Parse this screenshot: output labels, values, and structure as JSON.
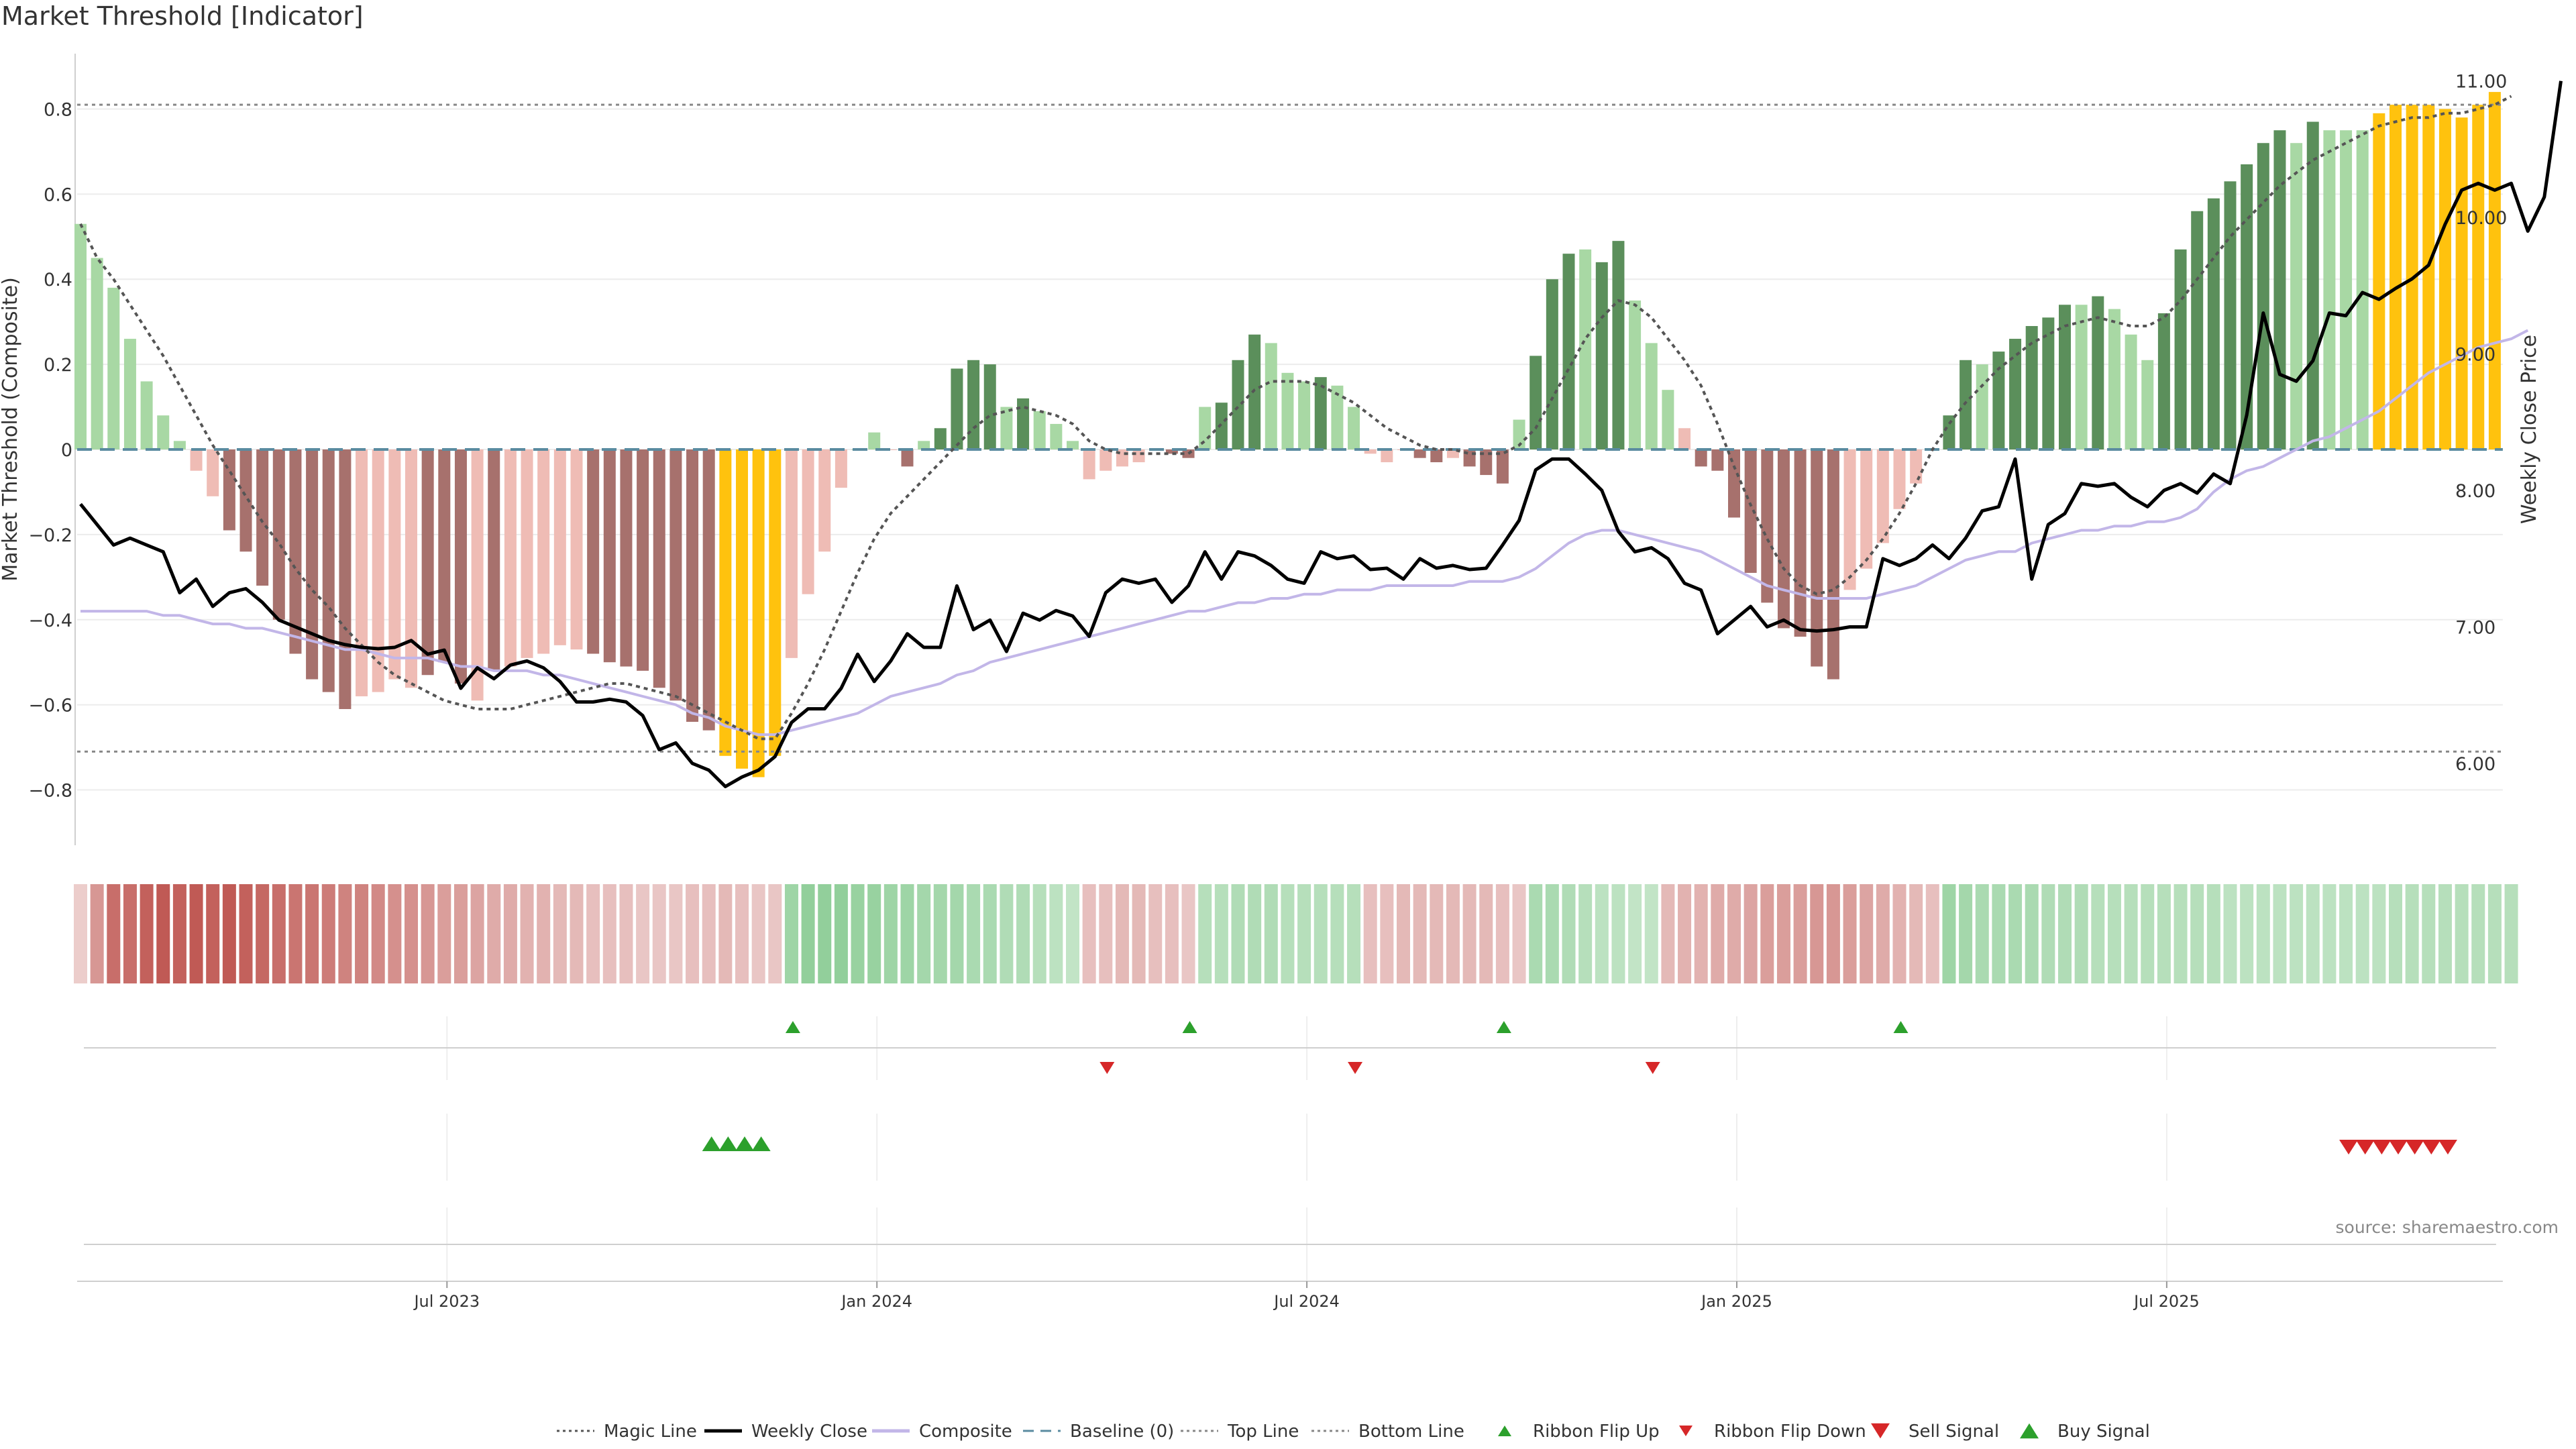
{
  "title": "Market Threshold [Indicator]",
  "source": "source: sharemaestro.com",
  "colors": {
    "magic": "#555555",
    "weekly": "#000000",
    "composite": "#c2b6e8",
    "baseline": "#5a8ba0",
    "threshold": "#888888",
    "dark_green": "#5b8f5b",
    "light_green": "#a8d8a4",
    "dark_red": "#a7716d",
    "light_red": "#efbcb5",
    "gold": "#ffc20e",
    "flip_up": "#2ca02c",
    "flip_down": "#d62728",
    "sell": "#d62728",
    "buy": "#2ca02c",
    "ribbon_red": "#c05a55",
    "ribbon_green": "#6fc07a"
  },
  "chart_data": {
    "type": "bar",
    "x_axis": {
      "ticks": [
        "Jul 2023",
        "Jan 2024",
        "Jul 2024",
        "Jan 2025",
        "Jul 2025"
      ],
      "tick_positions_week_index": [
        22,
        48,
        74,
        100,
        126
      ]
    },
    "y_left": {
      "label": "Market Threshold (Composite)",
      "range": [
        -0.93,
        0.93
      ],
      "ticks": [
        "0.8",
        "0.6",
        "0.4",
        "0.2",
        "0",
        "−0.2",
        "−0.4",
        "−0.6",
        "−0.8"
      ],
      "tick_values": [
        0.8,
        0.6,
        0.4,
        0.2,
        0,
        -0.2,
        -0.4,
        -0.6,
        -0.8
      ]
    },
    "y_right": {
      "label": "Weekly Close Price",
      "range": [
        5.4,
        11.2
      ],
      "ticks": [
        "11.00",
        "10.00",
        "9.00",
        "8.00",
        "7.00",
        "6.00"
      ],
      "tick_values": [
        11,
        10,
        9,
        8,
        7,
        6
      ]
    },
    "top_line": 0.81,
    "bottom_line": -0.71,
    "bars": [
      0.53,
      0.45,
      0.38,
      0.26,
      0.16,
      0.08,
      0.02,
      -0.05,
      -0.11,
      -0.19,
      -0.24,
      -0.32,
      -0.4,
      -0.48,
      -0.54,
      -0.57,
      -0.61,
      -0.58,
      -0.57,
      -0.54,
      -0.56,
      -0.53,
      -0.5,
      -0.55,
      -0.59,
      -0.52,
      -0.51,
      -0.49,
      -0.48,
      -0.46,
      -0.47,
      -0.48,
      -0.5,
      -0.51,
      -0.52,
      -0.56,
      -0.59,
      -0.64,
      -0.66,
      -0.72,
      -0.75,
      -0.77,
      -0.72,
      -0.49,
      -0.34,
      -0.24,
      -0.09,
      0,
      0.04,
      0,
      -0.04,
      0.02,
      0.05,
      0.19,
      0.21,
      0.2,
      0.1,
      0.12,
      0.09,
      0.06,
      0.02,
      -0.07,
      -0.05,
      -0.04,
      -0.03,
      0,
      -0.01,
      -0.02,
      0.1,
      0.11,
      0.21,
      0.27,
      0.25,
      0.18,
      0.16,
      0.17,
      0.15,
      0.1,
      -0.01,
      -0.03,
      0,
      -0.02,
      -0.03,
      -0.02,
      -0.04,
      -0.06,
      -0.08,
      0.07,
      0.22,
      0.4,
      0.46,
      0.47,
      0.44,
      0.49,
      0.35,
      0.25,
      0.14,
      0.05,
      -0.04,
      -0.05,
      -0.16,
      -0.29,
      -0.36,
      -0.42,
      -0.44,
      -0.51,
      -0.54,
      -0.33,
      -0.28,
      -0.22,
      -0.14,
      -0.08,
      0,
      0.08,
      0.21,
      0.2,
      0.23,
      0.26,
      0.29,
      0.31,
      0.34,
      0.34,
      0.36,
      0.33,
      0.27,
      0.21,
      0.32,
      0.47,
      0.56,
      0.59,
      0.63,
      0.67,
      0.72,
      0.75,
      0.72,
      0.77,
      0.75,
      0.75,
      0.75,
      0.79,
      0.81,
      0.81,
      0.81,
      0.8,
      0.78,
      0.81,
      0.84
    ],
    "bar_styles": [
      "lg",
      "lg",
      "lg",
      "lg",
      "lg",
      "lg",
      "lg",
      "lr",
      "lr",
      "dr",
      "dr",
      "dr",
      "dr",
      "dr",
      "dr",
      "dr",
      "dr",
      "lr",
      "lr",
      "lr",
      "lr",
      "dr",
      "dr",
      "dr",
      "lr",
      "dr",
      "lr",
      "lr",
      "lr",
      "lr",
      "lr",
      "dr",
      "dr",
      "dr",
      "dr",
      "dr",
      "dr",
      "dr",
      "dr",
      "g",
      "g",
      "g",
      "g",
      "lr",
      "lr",
      "lr",
      "lr",
      "lg",
      "lg",
      "lr",
      "dr",
      "lg",
      "dg",
      "dg",
      "dg",
      "dg",
      "lg",
      "dg",
      "lg",
      "lg",
      "lg",
      "lr",
      "lr",
      "lr",
      "lr",
      "lr",
      "dr",
      "dr",
      "lg",
      "dg",
      "dg",
      "dg",
      "lg",
      "lg",
      "lg",
      "dg",
      "lg",
      "lg",
      "lr",
      "lr",
      "lr",
      "dr",
      "dr",
      "lr",
      "dr",
      "dr",
      "dr",
      "lg",
      "dg",
      "dg",
      "dg",
      "lg",
      "dg",
      "dg",
      "lg",
      "lg",
      "lg",
      "lr",
      "dr",
      "dr",
      "dr",
      "dr",
      "dr",
      "dr",
      "dr",
      "dr",
      "dr",
      "lr",
      "lr",
      "lr",
      "lr",
      "lr",
      "lg",
      "dg",
      "dg",
      "lg",
      "dg",
      "dg",
      "dg",
      "dg",
      "dg",
      "lg",
      "dg",
      "lg",
      "lg",
      "lg",
      "dg",
      "dg",
      "dg",
      "dg",
      "dg",
      "dg",
      "dg",
      "dg",
      "lg",
      "dg",
      "lg",
      "lg",
      "lg",
      "g",
      "g",
      "g",
      "g",
      "g",
      "g",
      "g",
      "g"
    ],
    "series": [
      {
        "name": "Magic Line",
        "values": [
          0.53,
          0.45,
          0.4,
          0.34,
          0.28,
          0.22,
          0.15,
          0.08,
          0.01,
          -0.05,
          -0.11,
          -0.17,
          -0.22,
          -0.28,
          -0.33,
          -0.37,
          -0.42,
          -0.46,
          -0.5,
          -0.53,
          -0.55,
          -0.57,
          -0.59,
          -0.6,
          -0.61,
          -0.61,
          -0.61,
          -0.6,
          -0.59,
          -0.58,
          -0.57,
          -0.56,
          -0.55,
          -0.55,
          -0.56,
          -0.57,
          -0.58,
          -0.6,
          -0.62,
          -0.64,
          -0.66,
          -0.68,
          -0.68,
          -0.62,
          -0.55,
          -0.47,
          -0.38,
          -0.29,
          -0.21,
          -0.15,
          -0.11,
          -0.07,
          -0.03,
          0.01,
          0.05,
          0.08,
          0.09,
          0.1,
          0.09,
          0.08,
          0.06,
          0.02,
          0,
          -0.01,
          -0.01,
          -0.01,
          -0.01,
          -0.01,
          0.02,
          0.06,
          0.1,
          0.14,
          0.16,
          0.16,
          0.16,
          0.15,
          0.13,
          0.11,
          0.08,
          0.05,
          0.03,
          0.01,
          0,
          0,
          -0.01,
          -0.01,
          -0.01,
          0.01,
          0.05,
          0.12,
          0.19,
          0.26,
          0.31,
          0.35,
          0.34,
          0.31,
          0.26,
          0.21,
          0.15,
          0.06,
          -0.04,
          -0.13,
          -0.21,
          -0.28,
          -0.32,
          -0.34,
          -0.33,
          -0.3,
          -0.26,
          -0.21,
          -0.15,
          -0.08,
          0,
          0.06,
          0.11,
          0.15,
          0.19,
          0.22,
          0.25,
          0.27,
          0.29,
          0.3,
          0.31,
          0.3,
          0.29,
          0.29,
          0.31,
          0.35,
          0.4,
          0.45,
          0.5,
          0.54,
          0.58,
          0.62,
          0.65,
          0.68,
          0.7,
          0.72,
          0.74,
          0.76,
          0.77,
          0.78,
          0.78,
          0.79,
          0.79,
          0.8,
          0.81,
          0.83
        ]
      },
      {
        "name": "Weekly Close",
        "values": [
          7.9,
          7.75,
          7.6,
          7.65,
          7.6,
          7.55,
          7.25,
          7.35,
          7.15,
          7.25,
          7.28,
          7.18,
          7.05,
          7.0,
          6.95,
          6.9,
          6.87,
          6.85,
          6.84,
          6.85,
          6.9,
          6.8,
          6.83,
          6.55,
          6.7,
          6.62,
          6.72,
          6.75,
          6.7,
          6.6,
          6.45,
          6.45,
          6.47,
          6.45,
          6.35,
          6.1,
          6.15,
          6.0,
          5.95,
          5.83,
          5.9,
          5.95,
          6.05,
          6.3,
          6.4,
          6.4,
          6.55,
          6.8,
          6.6,
          6.75,
          6.95,
          6.85,
          6.85,
          7.3,
          6.98,
          7.05,
          6.82,
          7.1,
          7.05,
          7.12,
          7.08,
          6.93,
          7.25,
          7.35,
          7.32,
          7.35,
          7.18,
          7.3,
          7.55,
          7.35,
          7.55,
          7.52,
          7.45,
          7.35,
          7.32,
          7.55,
          7.5,
          7.52,
          7.42,
          7.43,
          7.35,
          7.5,
          7.43,
          7.45,
          7.42,
          7.43,
          7.6,
          7.78,
          8.15,
          8.23,
          8.23,
          8.12,
          8.0,
          7.7,
          7.55,
          7.58,
          7.5,
          7.32,
          7.27,
          6.95,
          7.05,
          7.15,
          7.0,
          7.05,
          6.98,
          6.97,
          6.98,
          7.0,
          7.0,
          7.5,
          7.45,
          7.5,
          7.6,
          7.5,
          7.65,
          7.85,
          7.88,
          8.23,
          7.35,
          7.75,
          7.83,
          8.05,
          8.03,
          8.05,
          7.95,
          7.88,
          8.0,
          8.05,
          7.98,
          8.12,
          8.05,
          8.55,
          9.3,
          8.85,
          8.8,
          8.95,
          9.3,
          9.28,
          9.45,
          9.4,
          9.48,
          9.55,
          9.65,
          9.95,
          10.2,
          10.25,
          10.2,
          10.25,
          9.9,
          10.15,
          11.0
        ]
      },
      {
        "name": "Composite",
        "values": [
          -0.38,
          -0.38,
          -0.38,
          -0.38,
          -0.38,
          -0.39,
          -0.39,
          -0.4,
          -0.41,
          -0.41,
          -0.42,
          -0.42,
          -0.43,
          -0.44,
          -0.45,
          -0.46,
          -0.47,
          -0.47,
          -0.48,
          -0.49,
          -0.49,
          -0.49,
          -0.5,
          -0.51,
          -0.51,
          -0.52,
          -0.52,
          -0.52,
          -0.53,
          -0.53,
          -0.54,
          -0.55,
          -0.56,
          -0.57,
          -0.58,
          -0.59,
          -0.6,
          -0.62,
          -0.63,
          -0.65,
          -0.66,
          -0.67,
          -0.67,
          -0.66,
          -0.65,
          -0.64,
          -0.63,
          -0.62,
          -0.6,
          -0.58,
          -0.57,
          -0.56,
          -0.55,
          -0.53,
          -0.52,
          -0.5,
          -0.49,
          -0.48,
          -0.47,
          -0.46,
          -0.45,
          -0.44,
          -0.43,
          -0.42,
          -0.41,
          -0.4,
          -0.39,
          -0.38,
          -0.38,
          -0.37,
          -0.36,
          -0.36,
          -0.35,
          -0.35,
          -0.34,
          -0.34,
          -0.33,
          -0.33,
          -0.33,
          -0.32,
          -0.32,
          -0.32,
          -0.32,
          -0.32,
          -0.31,
          -0.31,
          -0.31,
          -0.3,
          -0.28,
          -0.25,
          -0.22,
          -0.2,
          -0.19,
          -0.19,
          -0.2,
          -0.21,
          -0.22,
          -0.23,
          -0.24,
          -0.26,
          -0.28,
          -0.3,
          -0.32,
          -0.33,
          -0.34,
          -0.35,
          -0.35,
          -0.35,
          -0.35,
          -0.34,
          -0.33,
          -0.32,
          -0.3,
          -0.28,
          -0.26,
          -0.25,
          -0.24,
          -0.24,
          -0.22,
          -0.21,
          -0.2,
          -0.19,
          -0.19,
          -0.18,
          -0.18,
          -0.17,
          -0.17,
          -0.16,
          -0.14,
          -0.1,
          -0.07,
          -0.05,
          -0.04,
          -0.02,
          0,
          0.02,
          0.03,
          0.05,
          0.07,
          0.09,
          0.12,
          0.15,
          0.18,
          0.2,
          0.22,
          0.24,
          0.25,
          0.26,
          0.28
        ]
      },
      {
        "name": "Baseline (0)",
        "values": [
          0
        ]
      },
      {
        "name": "Top Line",
        "values": [
          0.81
        ]
      },
      {
        "name": "Bottom Line",
        "values": [
          -0.71
        ]
      }
    ],
    "ribbon": [
      -0.15,
      -0.55,
      -0.85,
      -0.85,
      -0.95,
      -1,
      -0.95,
      -1,
      -0.95,
      -1,
      -0.95,
      -0.9,
      -0.85,
      -0.8,
      -0.8,
      -0.75,
      -0.7,
      -0.7,
      -0.65,
      -0.6,
      -0.6,
      -0.55,
      -0.5,
      -0.5,
      -0.45,
      -0.4,
      -0.4,
      -0.35,
      -0.35,
      -0.3,
      -0.3,
      -0.25,
      -0.25,
      -0.25,
      -0.2,
      -0.2,
      -0.2,
      -0.25,
      -0.25,
      -0.3,
      -0.25,
      -0.2,
      -0.2,
      0.6,
      0.7,
      0.7,
      0.7,
      0.65,
      0.65,
      0.6,
      0.6,
      0.55,
      0.55,
      0.55,
      0.5,
      0.5,
      0.45,
      0.45,
      0.4,
      0.35,
      0.3,
      -0.25,
      -0.25,
      -0.3,
      -0.3,
      -0.25,
      -0.25,
      -0.2,
      0.4,
      0.4,
      0.45,
      0.45,
      0.45,
      0.4,
      0.4,
      0.4,
      0.4,
      0.4,
      -0.25,
      -0.25,
      -0.3,
      -0.3,
      -0.3,
      -0.3,
      -0.3,
      -0.3,
      -0.25,
      -0.2,
      0.5,
      0.5,
      0.45,
      0.4,
      0.35,
      0.35,
      0.3,
      0.3,
      -0.3,
      -0.35,
      -0.35,
      -0.4,
      -0.4,
      -0.45,
      -0.5,
      -0.5,
      -0.5,
      -0.55,
      -0.55,
      -0.5,
      -0.45,
      -0.4,
      -0.35,
      -0.3,
      -0.25,
      0.6,
      0.55,
      0.5,
      0.5,
      0.5,
      0.5,
      0.45,
      0.45,
      0.45,
      0.4,
      0.4,
      0.4,
      0.4,
      0.4,
      0.4,
      0.4,
      0.4,
      0.35,
      0.35,
      0.35,
      0.35,
      0.35,
      0.35,
      0.35,
      0.35,
      0.35,
      0.35,
      0.4,
      0.4,
      0.4,
      0.4,
      0.4,
      0.4,
      0.4,
      0.4
    ],
    "ribbon_flip_up_weeks": [
      43,
      67,
      86,
      110
    ],
    "ribbon_flip_down_weeks": [
      62,
      77,
      95
    ],
    "buy_signal_weeks": [
      38,
      39,
      40,
      41
    ],
    "sell_signal_weeks": [
      137,
      138,
      139,
      140,
      141,
      142,
      143
    ],
    "legend": [
      {
        "label": "Magic Line",
        "style": "dotted"
      },
      {
        "label": "Weekly Close",
        "style": "line"
      },
      {
        "label": "Composite",
        "style": "line"
      },
      {
        "label": "Baseline (0)",
        "style": "dashed"
      },
      {
        "label": "Top Line",
        "style": "dotted"
      },
      {
        "label": "Bottom Line",
        "style": "dotted"
      },
      {
        "label": "Ribbon Flip Up",
        "style": "tri-up"
      },
      {
        "label": "Ribbon Flip Down",
        "style": "tri-down"
      },
      {
        "label": "Sell Signal",
        "style": "tri-down-big"
      },
      {
        "label": "Buy Signal",
        "style": "tri-up-big"
      }
    ],
    "legend_placement": "bottom-center"
  }
}
